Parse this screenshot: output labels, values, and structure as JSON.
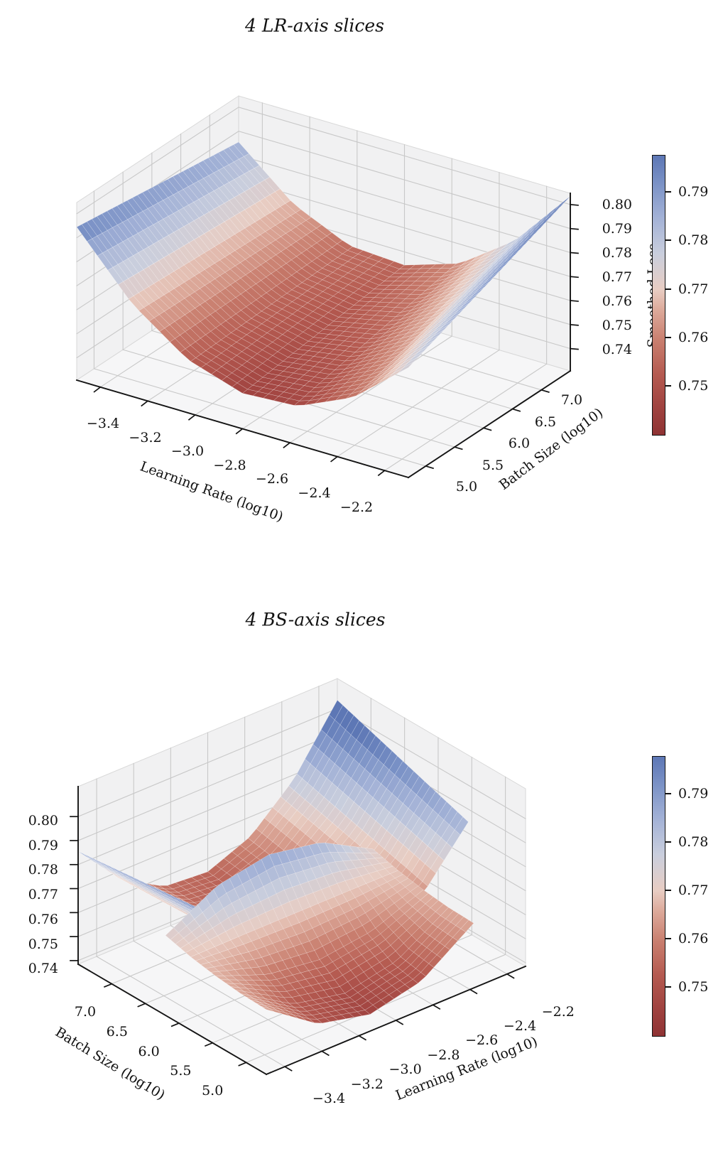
{
  "charts": [
    {
      "title": "4 LR-axis slices",
      "x_axis": {
        "label": "Learning Rate (log10)",
        "tick_labels": [
          "−3.4",
          "−3.2",
          "−3.0",
          "−2.8",
          "−2.6",
          "−2.4",
          "−2.2"
        ]
      },
      "y_axis": {
        "label": "Batch Size (log10)",
        "tick_labels": [
          "5.0",
          "5.5",
          "6.0",
          "6.5",
          "7.0"
        ]
      },
      "z_axis": {
        "label": "Smoothed Loss",
        "tick_labels": [
          "0.80",
          "0.79",
          "0.78",
          "0.77",
          "0.76",
          "0.75",
          "0.74"
        ],
        "side": "right"
      },
      "colorbar_tick_labels": [
        "0.79",
        "0.78",
        "0.77",
        "0.76",
        "0.75"
      ]
    },
    {
      "title": "4 BS-axis slices",
      "x_axis": {
        "label": "Learning Rate (log10)",
        "tick_labels": [
          "−3.4",
          "−3.2",
          "−3.0",
          "−2.8",
          "−2.6",
          "−2.4",
          "−2.2"
        ]
      },
      "y_axis": {
        "label": "Batch Size (log10)",
        "tick_labels": [
          "7.0",
          "6.5",
          "6.0",
          "5.5",
          "5.0"
        ]
      },
      "z_axis": {
        "label": "",
        "tick_labels": [
          "0.80",
          "0.79",
          "0.78",
          "0.77",
          "0.76",
          "0.75",
          "0.74"
        ],
        "side": "left"
      },
      "colorbar_tick_labels": [
        "0.79",
        "0.78",
        "0.77",
        "0.76",
        "0.75"
      ]
    }
  ],
  "colors": {
    "background": "#ffffff",
    "pane_wall": "#f1f1f2",
    "pane_floor": "#f6f6f7",
    "grid": "#c8c8c8",
    "spine": "#141414",
    "mesh_line": "rgba(255,255,255,0.45)",
    "colormap_stops": [
      {
        "t": 0.0,
        "c": "#8f3334"
      },
      {
        "t": 0.1,
        "c": "#a04340"
      },
      {
        "t": 0.22,
        "c": "#b55b51"
      },
      {
        "t": 0.34,
        "c": "#c97f6f"
      },
      {
        "t": 0.45,
        "c": "#ddab9c"
      },
      {
        "t": 0.52,
        "c": "#e8cdc3"
      },
      {
        "t": 0.65,
        "c": "#c9cedd"
      },
      {
        "t": 0.78,
        "c": "#a2b1d6"
      },
      {
        "t": 0.9,
        "c": "#7b92c6"
      },
      {
        "t": 1.0,
        "c": "#5d77b5"
      }
    ]
  },
  "chart_data": [
    {
      "type": "heatmap",
      "render": "3d-surface",
      "title": "4 LR-axis slices",
      "slices": 4,
      "slice_axis": "LR",
      "xlabel": "Learning Rate (log10)",
      "ylabel": "Batch Size (log10)",
      "zlabel": "Smoothed Loss",
      "x_range": [
        -3.5,
        -2.1
      ],
      "y_range": [
        4.7,
        7.5
      ],
      "x_ticks": [
        -3.4,
        -3.2,
        -3.0,
        -2.8,
        -2.6,
        -2.4,
        -2.2
      ],
      "y_ticks": [
        5.0,
        5.5,
        6.0,
        6.5,
        7.0
      ],
      "z_ticks": [
        0.74,
        0.75,
        0.76,
        0.77,
        0.78,
        0.79,
        0.8
      ],
      "x": [
        -3.5,
        -3.267,
        -3.033,
        -2.8,
        -2.567,
        -2.333,
        -2.1
      ],
      "y": [
        4.7,
        5.167,
        5.633,
        6.1,
        6.567,
        7.033,
        7.5
      ],
      "z_rows_axis": "x",
      "z": [
        [
          0.7945,
          0.793,
          0.7915,
          0.79,
          0.7885,
          0.787,
          0.7855
        ],
        [
          0.7693,
          0.7688,
          0.7683,
          0.7678,
          0.7673,
          0.7668,
          0.7663
        ],
        [
          0.7529,
          0.7534,
          0.7539,
          0.7544,
          0.7549,
          0.7554,
          0.7559
        ],
        [
          0.7455,
          0.747,
          0.7485,
          0.75,
          0.7515,
          0.753,
          0.7545
        ],
        [
          0.7469,
          0.7494,
          0.7519,
          0.7544,
          0.7569,
          0.7594,
          0.7619
        ],
        [
          0.7573,
          0.7608,
          0.7643,
          0.7678,
          0.7713,
          0.7748,
          0.7783
        ],
        [
          0.7765,
          0.781,
          0.7855,
          0.79,
          0.7945,
          0.799,
          0.8035
        ]
      ],
      "colorbar": {
        "vmin": 0.7397,
        "vmax": 0.7976,
        "ticks": [
          0.75,
          0.76,
          0.77,
          0.78,
          0.79
        ]
      }
    },
    {
      "type": "heatmap",
      "render": "3d-surface",
      "title": "4 BS-axis slices",
      "slices": 4,
      "slice_axis": "BS",
      "xlabel": "Learning Rate (log10)",
      "ylabel": "Batch Size (log10)",
      "zlabel": "",
      "x_range": [
        -3.5,
        -2.1
      ],
      "y_range": [
        4.7,
        7.5
      ],
      "x_ticks": [
        -3.4,
        -3.2,
        -3.0,
        -2.8,
        -2.6,
        -2.4,
        -2.2
      ],
      "y_ticks": [
        7.0,
        6.5,
        6.0,
        5.5,
        5.0
      ],
      "z_ticks": [
        0.74,
        0.75,
        0.76,
        0.77,
        0.78,
        0.79,
        0.8
      ],
      "x": [
        -3.5,
        -3.267,
        -3.033,
        -2.8,
        -2.567,
        -2.333,
        -2.1
      ],
      "y": [
        4.7,
        5.167,
        5.633,
        6.1,
        6.567,
        7.033,
        7.5
      ],
      "z_rows_axis": "x",
      "z": [
        [
          0.7945,
          0.793,
          0.7915,
          0.79,
          0.7885,
          0.787,
          0.7855
        ],
        [
          0.7693,
          0.7688,
          0.7683,
          0.7678,
          0.7673,
          0.7668,
          0.7663
        ],
        [
          0.7529,
          0.7534,
          0.7539,
          0.7544,
          0.7549,
          0.7554,
          0.7559
        ],
        [
          0.7455,
          0.747,
          0.7485,
          0.75,
          0.7515,
          0.753,
          0.7545
        ],
        [
          0.7469,
          0.7494,
          0.7519,
          0.7544,
          0.7569,
          0.7594,
          0.7619
        ],
        [
          0.7573,
          0.7608,
          0.7643,
          0.7678,
          0.7713,
          0.7748,
          0.7783
        ],
        [
          0.7765,
          0.781,
          0.7855,
          0.79,
          0.7945,
          0.799,
          0.8035
        ]
      ],
      "main_sheet_y_range": [
        5.55,
        7.5
      ],
      "front_slice": {
        "x": [
          -3.5,
          -3.22,
          -2.94,
          -2.66,
          -2.38
        ],
        "y": [
          4.7,
          5.075,
          5.45,
          5.825,
          6.2
        ],
        "z": [
          [
            0.7655,
            0.7659,
            0.7671,
            0.769,
            0.7718
          ],
          [
            0.7505,
            0.7526,
            0.7588,
            0.7691,
            0.7836
          ],
          [
            0.7455,
            0.7481,
            0.756,
            0.7691,
            0.7875
          ],
          [
            0.7505,
            0.7526,
            0.7588,
            0.7691,
            0.7836
          ],
          [
            0.7655,
            0.7659,
            0.7671,
            0.769,
            0.7718
          ]
        ]
      },
      "colorbar": {
        "vmin": 0.7397,
        "vmax": 0.7976,
        "ticks": [
          0.75,
          0.76,
          0.77,
          0.78,
          0.79
        ]
      }
    }
  ]
}
